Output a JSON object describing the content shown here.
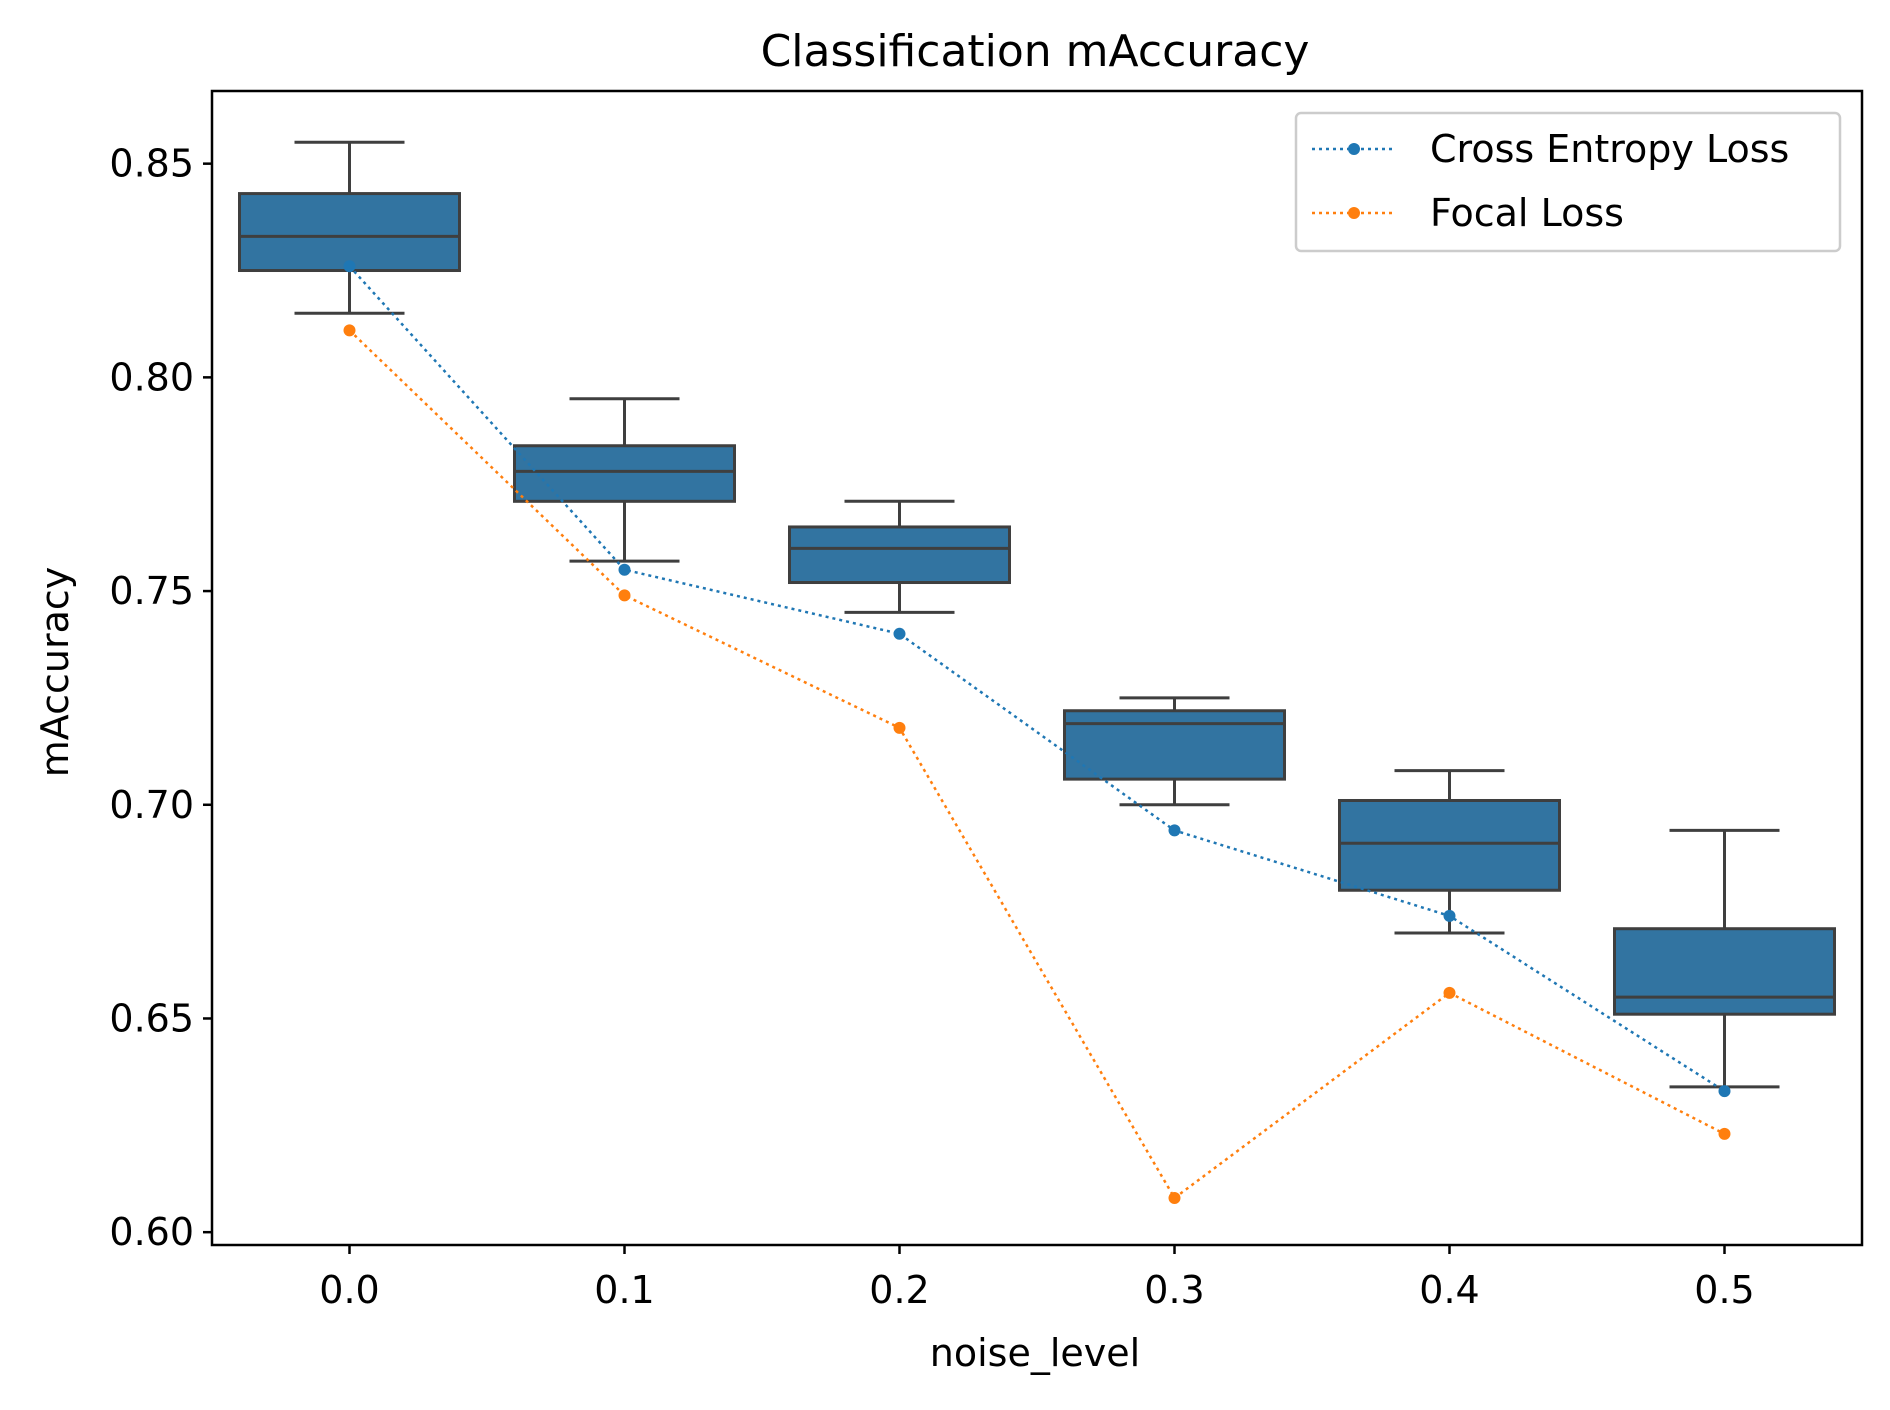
{
  "chart_data": {
    "type": "box",
    "title": "Classification mAccuracy",
    "xlabel": "noise_level",
    "ylabel": "mAccuracy",
    "ylim": [
      0.597,
      0.867
    ],
    "yticks": [
      0.6,
      0.65,
      0.7,
      0.75,
      0.8,
      0.85
    ],
    "ytick_labels": [
      "0.60",
      "0.65",
      "0.70",
      "0.75",
      "0.80",
      "0.85"
    ],
    "categories": [
      "0.0",
      "0.1",
      "0.2",
      "0.3",
      "0.4",
      "0.5"
    ],
    "boxes": [
      {
        "category": "0.0",
        "whisker_low": 0.815,
        "q1": 0.825,
        "median": 0.833,
        "q3": 0.843,
        "whisker_high": 0.855
      },
      {
        "category": "0.1",
        "whisker_low": 0.757,
        "q1": 0.771,
        "median": 0.778,
        "q3": 0.784,
        "whisker_high": 0.795
      },
      {
        "category": "0.2",
        "whisker_low": 0.745,
        "q1": 0.752,
        "median": 0.76,
        "q3": 0.765,
        "whisker_high": 0.771
      },
      {
        "category": "0.3",
        "whisker_low": 0.7,
        "q1": 0.706,
        "median": 0.719,
        "q3": 0.722,
        "whisker_high": 0.725
      },
      {
        "category": "0.4",
        "whisker_low": 0.67,
        "q1": 0.68,
        "median": 0.691,
        "q3": 0.701,
        "whisker_high": 0.708
      },
      {
        "category": "0.5",
        "whisker_low": 0.634,
        "q1": 0.651,
        "median": 0.655,
        "q3": 0.671,
        "whisker_high": 0.694
      }
    ],
    "series": [
      {
        "name": "Cross Entropy Loss",
        "values": [
          0.826,
          0.755,
          0.74,
          0.694,
          0.674,
          0.633
        ]
      },
      {
        "name": "Focal Loss",
        "values": [
          0.811,
          0.749,
          0.718,
          0.608,
          0.656,
          0.623
        ]
      }
    ],
    "legend": {
      "position": "upper-right"
    },
    "colors": {
      "box_fill": "#3274a1",
      "box_edge": "#3f3f3f",
      "cross_entropy": "#1f77b4",
      "focal": "#ff7f0e",
      "axis": "#000000"
    }
  }
}
